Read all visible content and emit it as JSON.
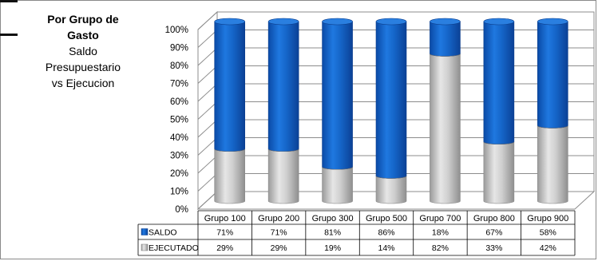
{
  "side_panel": {
    "title_line1": "Por Grupo de",
    "title_line2": "Gasto",
    "subtitle_line1": "Saldo",
    "subtitle_line2": "Presupuestario",
    "subtitle_line3": "vs Ejecucion"
  },
  "chart_data": {
    "type": "bar",
    "stacked": true,
    "percent_stacked": true,
    "three_d": true,
    "categories": [
      "Grupo 100",
      "Grupo 200",
      "Grupo 300",
      "Grupo 500",
      "Grupo 700",
      "Grupo 800",
      "Grupo 900"
    ],
    "series": [
      {
        "name": "SALDO",
        "values": [
          71,
          71,
          81,
          86,
          18,
          67,
          58
        ],
        "labels": [
          "71%",
          "71%",
          "81%",
          "86%",
          "18%",
          "67%",
          "58%"
        ],
        "color": "#1565c8"
      },
      {
        "name": "EJECUTADO",
        "values": [
          29,
          29,
          19,
          14,
          82,
          33,
          42
        ],
        "labels": [
          "29%",
          "29%",
          "19%",
          "14%",
          "82%",
          "33%",
          "42%"
        ],
        "color": "#bdbdbd"
      }
    ],
    "y_ticks": [
      "0%",
      "10%",
      "20%",
      "30%",
      "40%",
      "50%",
      "60%",
      "70%",
      "80%",
      "90%",
      "100%"
    ],
    "ylim": [
      0,
      100
    ],
    "grid": true,
    "legend": "data table below chart"
  }
}
